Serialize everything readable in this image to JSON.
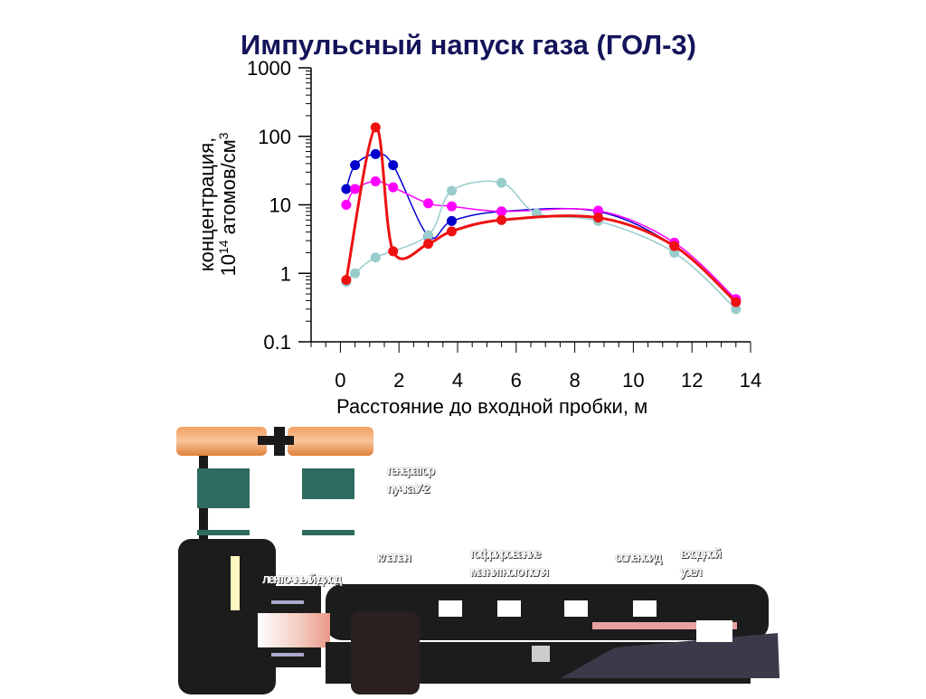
{
  "title": "Импульсный напуск газа (ГОЛ-3)",
  "chart_data": {
    "type": "line",
    "title": "Импульсный напуск газа (ГОЛ-3)",
    "xlabel": "Расстояние до входной пробки, м",
    "ylabel_line1": "концентрация,",
    "ylabel_line2_base": "10",
    "ylabel_line2_exp": "14",
    "ylabel_line2_rest": " атомов/см",
    "ylabel_line2_sup": "3",
    "xlim": [
      -1,
      14
    ],
    "ylim": [
      0.1,
      1000
    ],
    "yscale": "log",
    "x_ticks": [
      "0",
      "2",
      "4",
      "6",
      "8",
      "10",
      "12",
      "14"
    ],
    "y_ticks": [
      "0.1",
      "1",
      "10",
      "100",
      "1000"
    ],
    "x_tick_values": [
      0,
      2,
      4,
      6,
      8,
      10,
      12,
      14
    ],
    "y_tick_values": [
      0.1,
      1,
      10,
      100,
      1000
    ],
    "grid": false,
    "series": [
      {
        "color": "#0000cc",
        "x": [
          0.2,
          0.5,
          1.2,
          1.8,
          3.0,
          3.8,
          5.5,
          8.8,
          11.4,
          13.5
        ],
        "y": [
          17,
          38,
          55,
          38,
          3.5,
          5.8,
          8.0,
          8.0,
          2.5,
          0.4
        ]
      },
      {
        "color": "#ff00ff",
        "x": [
          0.2,
          0.5,
          1.2,
          1.8,
          3.0,
          3.8,
          5.5,
          8.8,
          11.4,
          13.5
        ],
        "y": [
          10,
          17,
          22,
          18,
          10.5,
          9.5,
          8.0,
          8.2,
          2.8,
          0.42
        ]
      },
      {
        "color": "#99cccc",
        "x": [
          0.2,
          0.5,
          1.2,
          3.0,
          3.8,
          5.5,
          6.7,
          8.8,
          11.4,
          13.5
        ],
        "y": [
          0.75,
          1.0,
          1.7,
          3.6,
          16,
          21,
          7.5,
          5.8,
          2.0,
          0.3
        ]
      },
      {
        "color": "#ee1111",
        "x": [
          0.2,
          1.2,
          1.8,
          3.0,
          3.8,
          5.5,
          8.8,
          11.4,
          13.5
        ],
        "y": [
          0.8,
          135,
          2.1,
          2.7,
          4.1,
          6.0,
          6.5,
          2.5,
          0.38
        ]
      }
    ]
  },
  "diagram": {
    "labels": {
      "generator_line1": "генератор",
      "generator_line2": "пучка У-2",
      "diode": "ленточный диод",
      "valve": "клапан",
      "corrugated_line1": "гофрирование",
      "corrugated_line2": "магнитного поля",
      "solenoid": "соленоид",
      "input_line1": "входной",
      "input_line2": "узел"
    }
  }
}
